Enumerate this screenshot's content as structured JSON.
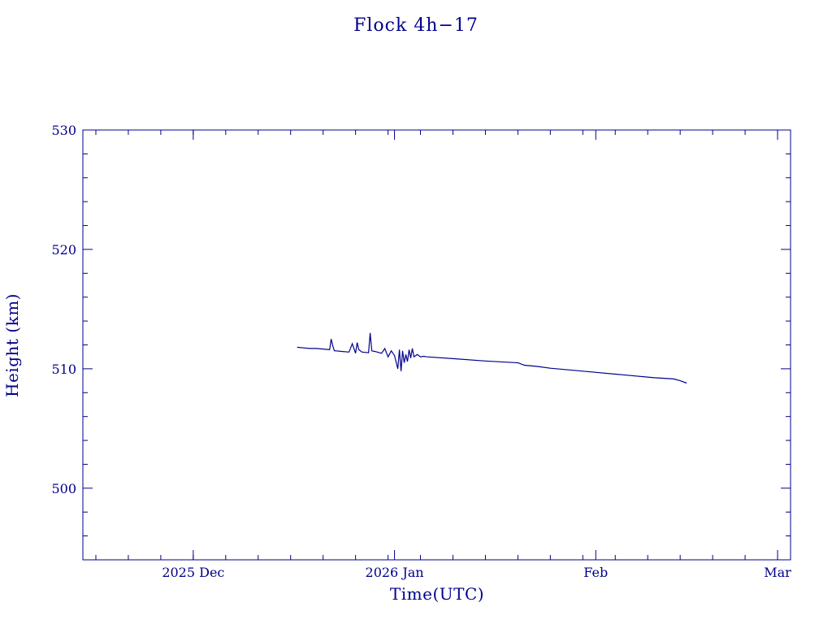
{
  "chart_data": {
    "type": "line",
    "title": "Flock 4h−17",
    "xlabel": "Time(UTC)",
    "ylabel": "Height (km)",
    "colors": {
      "axis": "#00008b",
      "line": "#00008b",
      "background": "#ffffff"
    },
    "grid": false,
    "legend": "none",
    "xlim": [
      "2025-11-14",
      "2026-03-03"
    ],
    "ylim": [
      494,
      530
    ],
    "x_ticks": [
      {
        "date": "2025-12-01",
        "label": "2025 Dec"
      },
      {
        "date": "2026-01-01",
        "label": "2026 Jan"
      },
      {
        "date": "2026-02-01",
        "label": "Feb"
      },
      {
        "date": "2026-03-01",
        "label": "Mar"
      }
    ],
    "y_ticks": [
      {
        "value": 500,
        "label": "500"
      },
      {
        "value": 510,
        "label": "510"
      },
      {
        "value": 520,
        "label": "520"
      },
      {
        "value": 530,
        "label": "530"
      }
    ],
    "series": [
      {
        "x": [
          "2025-12-17",
          "2025-12-18",
          "2025-12-19",
          "2025-12-20",
          "2025-12-21",
          "2025-12-22",
          "2025-12-22T06:00",
          "2025-12-22T12:00",
          "2025-12-22T18:00",
          "2025-12-23",
          "2025-12-24",
          "2025-12-25",
          "2025-12-25T12:00",
          "2025-12-26",
          "2025-12-26T06:00",
          "2025-12-26T12:00",
          "2025-12-27",
          "2025-12-28",
          "2025-12-28T06:00",
          "2025-12-28T12:00",
          "2025-12-29",
          "2025-12-30",
          "2025-12-30T12:00",
          "2025-12-31",
          "2025-12-31T12:00",
          "2026-01-01",
          "2026-01-01T12:00",
          "2026-01-01T18:00",
          "2026-01-02",
          "2026-01-02T06:00",
          "2026-01-02T12:00",
          "2026-01-02T18:00",
          "2026-01-03",
          "2026-01-03T06:00",
          "2026-01-03T12:00",
          "2026-01-03T18:00",
          "2026-01-04",
          "2026-01-04T12:00",
          "2026-01-05",
          "2026-01-05T12:00",
          "2026-01-06",
          "2026-01-10",
          "2026-01-15",
          "2026-01-20",
          "2026-01-21",
          "2026-01-23",
          "2026-01-25",
          "2026-01-30",
          "2026-02-05",
          "2026-02-10",
          "2026-02-13",
          "2026-02-14",
          "2026-02-15"
        ],
        "y": [
          511.8,
          511.75,
          511.7,
          511.7,
          511.65,
          511.6,
          512.5,
          511.9,
          511.5,
          511.5,
          511.45,
          511.4,
          512.1,
          511.3,
          512.2,
          511.6,
          511.4,
          511.35,
          513.0,
          511.5,
          511.45,
          511.3,
          511.7,
          511.0,
          511.5,
          511.1,
          510.0,
          511.6,
          509.8,
          511.5,
          510.5,
          511.2,
          510.6,
          511.6,
          510.9,
          511.7,
          511.0,
          511.2,
          511.0,
          511.05,
          511.0,
          510.85,
          510.65,
          510.5,
          510.3,
          510.2,
          510.05,
          509.8,
          509.5,
          509.25,
          509.15,
          509.0,
          508.8
        ]
      }
    ]
  }
}
